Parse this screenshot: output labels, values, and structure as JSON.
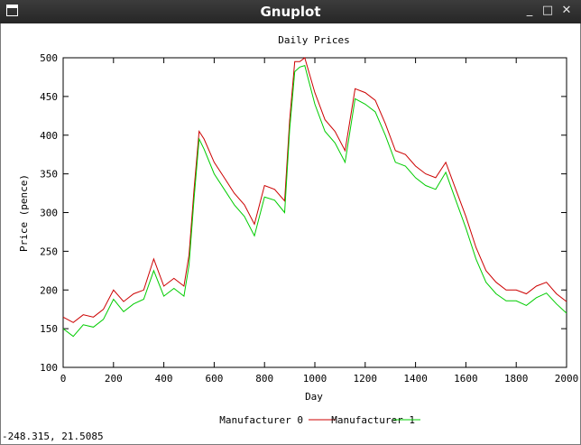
{
  "window": {
    "title": "Gnuplot",
    "icon": "gnuplot-window-icon",
    "controls": {
      "minimize": "_",
      "maximize": "□",
      "close": "✕"
    }
  },
  "status": {
    "coords": "-248.315,  21.5085"
  },
  "chart_data": {
    "type": "line",
    "title": "Daily Prices",
    "xlabel": "Day",
    "ylabel": "Price (pence)",
    "xlim": [
      0,
      2000
    ],
    "ylim": [
      100,
      500
    ],
    "xticks": [
      0,
      200,
      400,
      600,
      800,
      1000,
      1200,
      1400,
      1600,
      1800,
      2000
    ],
    "yticks": [
      100,
      150,
      200,
      250,
      300,
      350,
      400,
      450,
      500
    ],
    "grid": false,
    "legend": "bottom-center",
    "series": [
      {
        "name": "Manufacturer 0",
        "color": "#cc0000",
        "x": [
          0,
          40,
          80,
          120,
          160,
          200,
          240,
          280,
          320,
          360,
          400,
          440,
          480,
          500,
          520,
          540,
          560,
          600,
          640,
          680,
          720,
          760,
          800,
          840,
          880,
          900,
          920,
          940,
          960,
          1000,
          1040,
          1080,
          1120,
          1160,
          1200,
          1240,
          1280,
          1320,
          1360,
          1400,
          1440,
          1480,
          1520,
          1560,
          1600,
          1640,
          1680,
          1720,
          1760,
          1800,
          1840,
          1880,
          1920,
          1960,
          2000
        ],
        "y": [
          165,
          158,
          168,
          165,
          175,
          200,
          185,
          195,
          200,
          240,
          205,
          215,
          205,
          245,
          330,
          405,
          395,
          365,
          345,
          325,
          310,
          285,
          335,
          330,
          315,
          420,
          495,
          495,
          500,
          455,
          420,
          405,
          380,
          460,
          455,
          445,
          415,
          380,
          375,
          360,
          350,
          345,
          365,
          330,
          295,
          255,
          225,
          210,
          200,
          200,
          195,
          205,
          210,
          195,
          185
        ]
      },
      {
        "name": "Manufacturer 1",
        "color": "#00cc00",
        "x": [
          0,
          40,
          80,
          120,
          160,
          200,
          240,
          280,
          320,
          360,
          400,
          440,
          480,
          500,
          520,
          540,
          560,
          600,
          640,
          680,
          720,
          760,
          800,
          840,
          880,
          900,
          920,
          940,
          960,
          1000,
          1040,
          1080,
          1120,
          1160,
          1200,
          1240,
          1280,
          1320,
          1360,
          1400,
          1440,
          1480,
          1520,
          1560,
          1600,
          1640,
          1680,
          1720,
          1760,
          1800,
          1840,
          1880,
          1920,
          1960,
          2000
        ],
        "y": [
          150,
          140,
          155,
          152,
          162,
          188,
          172,
          182,
          188,
          225,
          192,
          202,
          192,
          232,
          318,
          395,
          382,
          350,
          330,
          310,
          295,
          270,
          320,
          316,
          300,
          408,
          482,
          488,
          490,
          440,
          405,
          390,
          365,
          447,
          440,
          430,
          400,
          365,
          360,
          345,
          335,
          330,
          352,
          316,
          280,
          240,
          210,
          195,
          186,
          186,
          180,
          190,
          196,
          182,
          170
        ]
      }
    ]
  }
}
